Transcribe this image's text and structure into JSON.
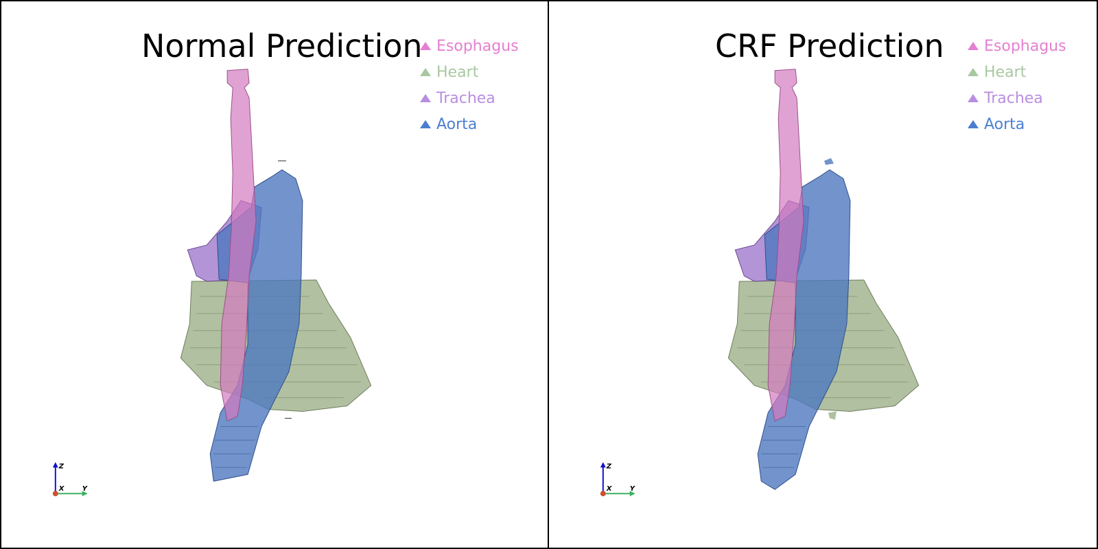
{
  "panels": [
    {
      "title": "Normal Prediction",
      "legend": [
        {
          "label": "Esophagus",
          "color": "#e57fd0"
        },
        {
          "label": "Heart",
          "color": "#a9c8a0"
        },
        {
          "label": "Trachea",
          "color": "#b98ee0"
        },
        {
          "label": "Aorta",
          "color": "#4a7fd0"
        }
      ],
      "axes": {
        "x": "X",
        "y": "Y",
        "z": "Z"
      }
    },
    {
      "title": "CRF Prediction",
      "legend": [
        {
          "label": "Esophagus",
          "color": "#e57fd0"
        },
        {
          "label": "Heart",
          "color": "#a9c8a0"
        },
        {
          "label": "Trachea",
          "color": "#b98ee0"
        },
        {
          "label": "Aorta",
          "color": "#4a7fd0"
        }
      ],
      "axes": {
        "x": "X",
        "y": "Y",
        "z": "Z"
      }
    }
  ],
  "structure_colors": {
    "esophagus": "#d37bbf",
    "heart": "#a3b58f",
    "trachea": "#9a70c8",
    "aorta": "#4f78bf"
  }
}
